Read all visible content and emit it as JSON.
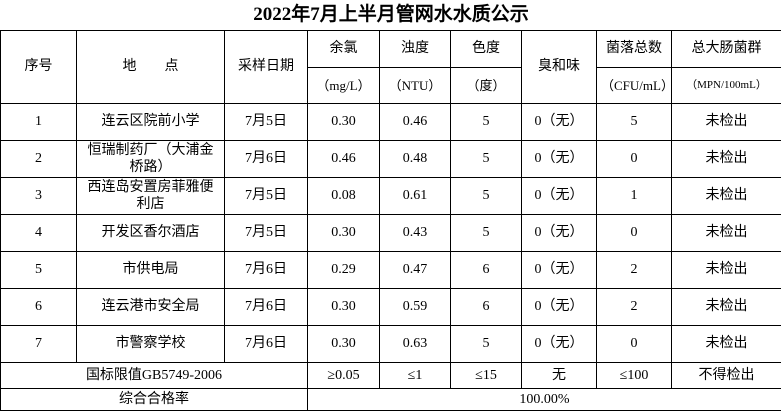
{
  "title": "2022年7月上半月管网水水质公示",
  "header": [
    {
      "label": "序号"
    },
    {
      "label": "地　　点"
    },
    {
      "label": "采样日期"
    },
    {
      "label": "余氯",
      "unit": "（mg/L）"
    },
    {
      "label": "浊度",
      "unit": "（NTU）"
    },
    {
      "label": "色度",
      "unit": "（度）"
    },
    {
      "label": "臭和味"
    },
    {
      "label": "菌落总数",
      "unit": "（CFU/mL）"
    },
    {
      "label": "总大肠菌群",
      "unit": "（MPN/100mL）"
    }
  ],
  "rows": [
    [
      "1",
      "连云区院前小学",
      "7月5日",
      "0.30",
      "0.46",
      "5",
      "0（无）",
      "5",
      "未检出"
    ],
    [
      "2",
      "恒瑞制药厂（大浦金桥路）",
      "7月6日",
      "0.46",
      "0.48",
      "5",
      "0（无）",
      "0",
      "未检出"
    ],
    [
      "3",
      "西连岛安置房菲雅便利店",
      "7月5日",
      "0.08",
      "0.61",
      "5",
      "0（无）",
      "1",
      "未检出"
    ],
    [
      "4",
      "开发区香尔酒店",
      "7月5日",
      "0.30",
      "0.43",
      "5",
      "0（无）",
      "0",
      "未检出"
    ],
    [
      "5",
      "市供电局",
      "7月6日",
      "0.29",
      "0.47",
      "6",
      "0（无）",
      "2",
      "未检出"
    ],
    [
      "6",
      "连云港市安全局",
      "7月6日",
      "0.30",
      "0.59",
      "6",
      "0（无）",
      "2",
      "未检出"
    ],
    [
      "7",
      "市警察学校",
      "7月6日",
      "0.30",
      "0.63",
      "5",
      "0（无）",
      "0",
      "未检出"
    ]
  ],
  "limits": {
    "label": "国标限值GB5749-2006",
    "values": [
      "≥0.05",
      "≤1",
      "≤15",
      "无",
      "≤100",
      "不得检出"
    ]
  },
  "pass_rate": {
    "label": "综合合格率",
    "value": "100.00%"
  }
}
